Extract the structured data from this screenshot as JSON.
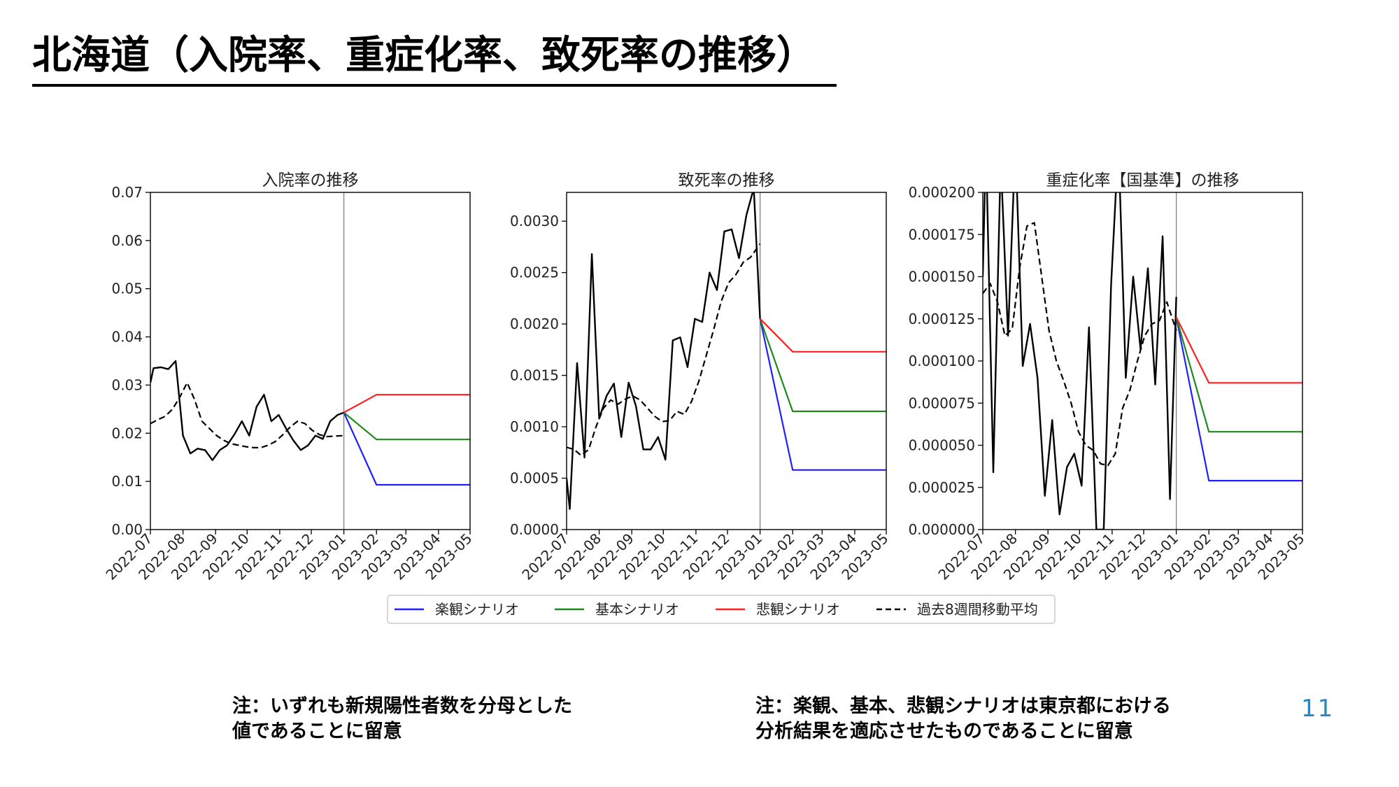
{
  "page": {
    "title": "北海道（入院率、重症化率、致死率の推移）",
    "note_left": [
      "注：いずれも新規陽性者数を分母とした",
      "値であることに留意"
    ],
    "note_right": [
      "注：楽観、基本、悲観シナリオは東京都における",
      "分析結果を適応させたものであることに留意"
    ],
    "page_number": "11"
  },
  "colors": {
    "optimistic": "#1f1fff",
    "baseline": "#1b8a1b",
    "pessimistic": "#ff1f1f",
    "moving_average": "#000000",
    "observed": "#000000"
  },
  "legend": {
    "placement": "bottom-center",
    "items": [
      "楽観シナリオ",
      "基本シナリオ",
      "悲観シナリオ",
      "過去8週間移動平均"
    ]
  },
  "chart_data": [
    {
      "type": "line",
      "title": "入院率の推移",
      "xlabel": "",
      "ylabel": "",
      "x_ticks": [
        "2022-07",
        "2022-08",
        "2022-09",
        "2022-10",
        "2022-11",
        "2022-12",
        "2023-01",
        "2023-02",
        "2023-03",
        "2023-04",
        "2023-05"
      ],
      "xlim": [
        "2022-07-01",
        "2023-05-01"
      ],
      "ylim": [
        0,
        0.07
      ],
      "y_ticks": [
        "0.00",
        "0.01",
        "0.02",
        "0.03",
        "0.04",
        "0.05",
        "0.06",
        "0.07"
      ],
      "forecast_start": "2023-01-01",
      "observed": {
        "x": [
          "2022-07-01",
          "2022-07-04",
          "2022-07-11",
          "2022-07-18",
          "2022-07-25",
          "2022-08-01",
          "2022-08-08",
          "2022-08-15",
          "2022-08-22",
          "2022-08-29",
          "2022-09-05",
          "2022-09-12",
          "2022-09-19",
          "2022-09-26",
          "2022-10-03",
          "2022-10-10",
          "2022-10-17",
          "2022-10-24",
          "2022-10-31",
          "2022-11-07",
          "2022-11-14",
          "2022-11-21",
          "2022-11-28",
          "2022-12-05",
          "2022-12-12",
          "2022-12-19",
          "2022-12-26",
          "2023-01-01"
        ],
        "values": [
          0.0305,
          0.0335,
          0.0337,
          0.0333,
          0.035,
          0.0195,
          0.0158,
          0.0168,
          0.0165,
          0.0144,
          0.0165,
          0.0175,
          0.0198,
          0.0225,
          0.0195,
          0.0255,
          0.028,
          0.0225,
          0.0238,
          0.021,
          0.0185,
          0.0165,
          0.0175,
          0.0195,
          0.0188,
          0.0225,
          0.0238,
          0.0243
        ]
      },
      "moving_average": {
        "x": [
          "2022-07-01",
          "2022-07-08",
          "2022-07-15",
          "2022-07-22",
          "2022-07-29",
          "2022-08-05",
          "2022-08-12",
          "2022-08-19",
          "2022-08-26",
          "2022-09-02",
          "2022-09-09",
          "2022-09-16",
          "2022-09-23",
          "2022-09-30",
          "2022-10-07",
          "2022-10-14",
          "2022-10-21",
          "2022-10-28",
          "2022-11-04",
          "2022-11-11",
          "2022-11-18",
          "2022-11-25",
          "2022-12-02",
          "2022-12-09",
          "2022-12-16",
          "2022-12-23",
          "2023-01-01"
        ],
        "values": [
          0.022,
          0.0228,
          0.0235,
          0.025,
          0.0275,
          0.0305,
          0.027,
          0.0225,
          0.021,
          0.0195,
          0.0185,
          0.0178,
          0.0175,
          0.0172,
          0.017,
          0.017,
          0.0175,
          0.0183,
          0.0197,
          0.0213,
          0.0225,
          0.022,
          0.0206,
          0.0197,
          0.0193,
          0.0194,
          0.0195
        ]
      },
      "series": [
        {
          "name": "楽観シナリオ",
          "x": [
            "2023-01-01",
            "2023-02-01",
            "2023-05-01"
          ],
          "values": [
            0.0243,
            0.0093,
            0.0093
          ]
        },
        {
          "name": "基本シナリオ",
          "x": [
            "2023-01-01",
            "2023-02-01",
            "2023-05-01"
          ],
          "values": [
            0.0243,
            0.0187,
            0.0187
          ]
        },
        {
          "name": "悲観シナリオ",
          "x": [
            "2023-01-01",
            "2023-02-01",
            "2023-05-01"
          ],
          "values": [
            0.0243,
            0.028,
            0.028
          ]
        }
      ]
    },
    {
      "type": "line",
      "title": "致死率の推移",
      "xlabel": "",
      "ylabel": "",
      "x_ticks": [
        "2022-07",
        "2022-08",
        "2022-09",
        "2022-10",
        "2022-11",
        "2022-12",
        "2023-01",
        "2023-02",
        "2023-03",
        "2023-04",
        "2023-05"
      ],
      "xlim": [
        "2022-07-01",
        "2023-05-01"
      ],
      "ylim": [
        0,
        0.00328
      ],
      "y_ticks": [
        "0.0000",
        "0.0005",
        "0.0010",
        "0.0015",
        "0.0020",
        "0.0025",
        "0.0030"
      ],
      "forecast_start": "2023-01-01",
      "observed": {
        "x": [
          "2022-07-01",
          "2022-07-04",
          "2022-07-11",
          "2022-07-18",
          "2022-07-25",
          "2022-08-01",
          "2022-08-08",
          "2022-08-15",
          "2022-08-22",
          "2022-08-29",
          "2022-09-05",
          "2022-09-12",
          "2022-09-19",
          "2022-09-26",
          "2022-10-03",
          "2022-10-10",
          "2022-10-17",
          "2022-10-24",
          "2022-10-31",
          "2022-11-07",
          "2022-11-14",
          "2022-11-21",
          "2022-11-28",
          "2022-12-05",
          "2022-12-12",
          "2022-12-19",
          "2022-12-26",
          "2023-01-01"
        ],
        "values": [
          0.0005,
          0.0002,
          0.00162,
          0.0007,
          0.00268,
          0.00108,
          0.0013,
          0.00142,
          0.0009,
          0.00143,
          0.0012,
          0.00078,
          0.00078,
          0.0009,
          0.00068,
          0.00184,
          0.00187,
          0.00158,
          0.00205,
          0.00202,
          0.0025,
          0.00233,
          0.0029,
          0.00292,
          0.00264,
          0.00306,
          0.00332,
          0.00205
        ]
      },
      "moving_average": {
        "x": [
          "2022-07-01",
          "2022-07-08",
          "2022-07-15",
          "2022-07-22",
          "2022-07-29",
          "2022-08-05",
          "2022-08-12",
          "2022-08-19",
          "2022-08-26",
          "2022-09-02",
          "2022-09-09",
          "2022-09-16",
          "2022-09-23",
          "2022-09-30",
          "2022-10-07",
          "2022-10-14",
          "2022-10-21",
          "2022-10-28",
          "2022-11-04",
          "2022-11-11",
          "2022-11-18",
          "2022-11-25",
          "2022-12-02",
          "2022-12-09",
          "2022-12-16",
          "2022-12-23",
          "2023-01-01"
        ],
        "values": [
          0.0008,
          0.00078,
          0.00072,
          0.00078,
          0.001,
          0.00118,
          0.00126,
          0.00122,
          0.00127,
          0.0013,
          0.00126,
          0.00118,
          0.0011,
          0.00105,
          0.00106,
          0.00115,
          0.00112,
          0.00125,
          0.00145,
          0.0017,
          0.00195,
          0.00222,
          0.0024,
          0.00248,
          0.0026,
          0.00265,
          0.00278
        ]
      },
      "series": [
        {
          "name": "楽観シナリオ",
          "x": [
            "2023-01-01",
            "2023-02-01",
            "2023-05-01"
          ],
          "values": [
            0.00205,
            0.00058,
            0.00058
          ]
        },
        {
          "name": "基本シナリオ",
          "x": [
            "2023-01-01",
            "2023-02-01",
            "2023-05-01"
          ],
          "values": [
            0.00205,
            0.00115,
            0.00115
          ]
        },
        {
          "name": "悲観シナリオ",
          "x": [
            "2023-01-01",
            "2023-02-01",
            "2023-05-01"
          ],
          "values": [
            0.00205,
            0.00173,
            0.00173
          ]
        }
      ]
    },
    {
      "type": "line",
      "title": "重症化率【国基準】の推移",
      "xlabel": "",
      "ylabel": "",
      "x_ticks": [
        "2022-07",
        "2022-08",
        "2022-09",
        "2022-10",
        "2022-11",
        "2022-12",
        "2023-01",
        "2023-02",
        "2023-03",
        "2023-04",
        "2023-05"
      ],
      "xlim": [
        "2022-07-01",
        "2023-05-01"
      ],
      "ylim": [
        0,
        0.0002
      ],
      "y_ticks": [
        "0.000000",
        "0.000025",
        "0.000050",
        "0.000075",
        "0.000100",
        "0.000125",
        "0.000150",
        "0.000175",
        "0.000200"
      ],
      "forecast_start": "2023-01-01",
      "observed": {
        "x": [
          "2022-07-01",
          "2022-07-04",
          "2022-07-11",
          "2022-07-18",
          "2022-07-25",
          "2022-08-01",
          "2022-08-08",
          "2022-08-15",
          "2022-08-22",
          "2022-08-29",
          "2022-09-05",
          "2022-09-12",
          "2022-09-19",
          "2022-09-26",
          "2022-10-03",
          "2022-10-10",
          "2022-10-17",
          "2022-10-24",
          "2022-10-31",
          "2022-11-07",
          "2022-11-14",
          "2022-11-21",
          "2022-11-28",
          "2022-12-05",
          "2022-12-12",
          "2022-12-19",
          "2022-12-26",
          "2023-01-01"
        ],
        "values": [
          0.00015,
          0.00023,
          3.4e-05,
          0.00022,
          0.000115,
          0.00023,
          9.7e-05,
          0.000122,
          9e-05,
          2e-05,
          6.5e-05,
          9e-06,
          3.7e-05,
          4.5e-05,
          2.6e-05,
          0.00012,
          0.0,
          0.0,
          0.000145,
          0.00023,
          9e-05,
          0.00015,
          0.000107,
          0.000155,
          8.6e-05,
          0.000174,
          1.8e-05,
          0.000138
        ]
      },
      "moving_average": {
        "x": [
          "2022-07-01",
          "2022-07-08",
          "2022-07-15",
          "2022-07-22",
          "2022-07-29",
          "2022-08-05",
          "2022-08-12",
          "2022-08-19",
          "2022-08-26",
          "2022-09-02",
          "2022-09-09",
          "2022-09-16",
          "2022-09-23",
          "2022-09-30",
          "2022-10-07",
          "2022-10-14",
          "2022-10-21",
          "2022-10-28",
          "2022-11-04",
          "2022-11-11",
          "2022-11-18",
          "2022-11-25",
          "2022-12-02",
          "2022-12-09",
          "2022-12-16",
          "2022-12-23",
          "2023-01-01"
        ],
        "values": [
          0.00014,
          0.000146,
          0.000135,
          0.000115,
          0.000119,
          0.000155,
          0.00018,
          0.000182,
          0.00015,
          0.000118,
          0.0001,
          8.8e-05,
          7.5e-05,
          5.8e-05,
          5e-05,
          4.7e-05,
          3.9e-05,
          3.8e-05,
          4.5e-05,
          7.2e-05,
          8.3e-05,
          0.0001,
          0.000115,
          0.000122,
          0.000124,
          0.000135,
          0.000118
        ]
      },
      "series": [
        {
          "name": "楽観シナリオ",
          "x": [
            "2023-01-01",
            "2023-02-01",
            "2023-05-01"
          ],
          "values": [
            0.000126,
            2.9e-05,
            2.9e-05
          ]
        },
        {
          "name": "基本シナリオ",
          "x": [
            "2023-01-01",
            "2023-02-01",
            "2023-05-01"
          ],
          "values": [
            0.000126,
            5.8e-05,
            5.8e-05
          ]
        },
        {
          "name": "悲観シナリオ",
          "x": [
            "2023-01-01",
            "2023-02-01",
            "2023-05-01"
          ],
          "values": [
            0.000126,
            8.7e-05,
            8.7e-05
          ]
        }
      ]
    }
  ]
}
